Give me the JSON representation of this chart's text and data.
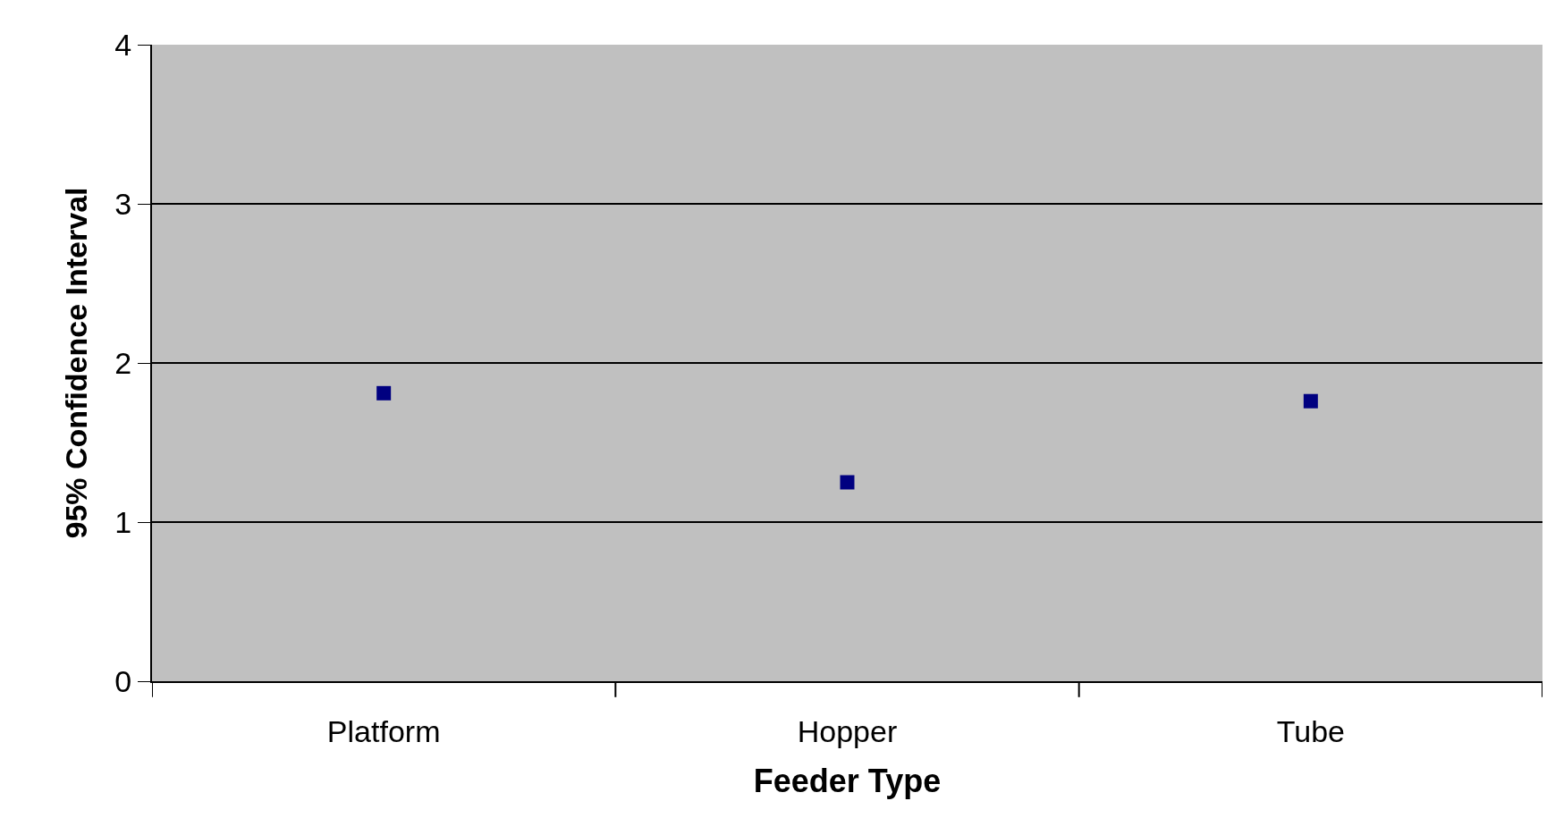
{
  "chart_data": {
    "type": "scatter",
    "xlabel": "Feeder Type",
    "ylabel": "95% Confidence Interval",
    "categories": [
      "Platform",
      "Hopper",
      "Tube"
    ],
    "series": [
      {
        "color": "#000080",
        "values": [
          1.81,
          1.25,
          1.76
        ]
      }
    ],
    "ylim": [
      0,
      4
    ],
    "yticks": [
      0,
      1,
      2,
      3,
      4
    ],
    "grid": "y",
    "marker": "square"
  }
}
